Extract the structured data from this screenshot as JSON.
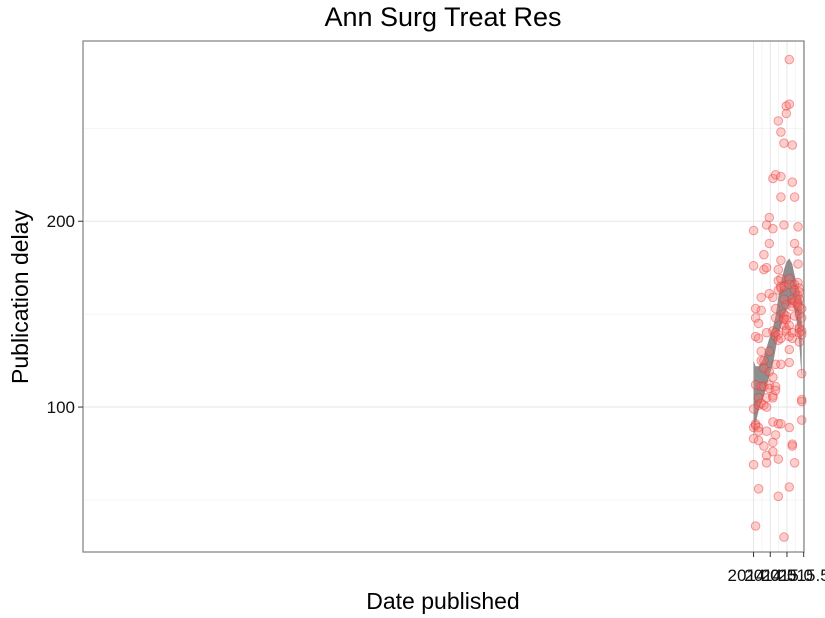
{
  "chart_data": {
    "type": "scatter",
    "title": "Ann Surg Treat Res",
    "xlabel": "Date published",
    "ylabel": "Publication delay",
    "xlim": [
      1993.93,
      2015.51
    ],
    "ylim": [
      22,
      297
    ],
    "x_ticks": [
      2014.0,
      2014.5,
      2015.0,
      2015.5
    ],
    "x_tick_labels": [
      "2014.0",
      "2014.5",
      "2015.0",
      "2015.5"
    ],
    "y_ticks": [
      100,
      200
    ],
    "y_tick_labels": [
      "100",
      "200"
    ],
    "grid": true,
    "point_color": "#f8766d",
    "point_edge_color": "#e8333a",
    "band_color": "#888888",
    "points": [
      [
        2014.0,
        195
      ],
      [
        2014.0,
        176
      ],
      [
        2014.0,
        99
      ],
      [
        2014.0,
        89
      ],
      [
        2014.0,
        83
      ],
      [
        2014.0,
        69
      ],
      [
        2014.06,
        153
      ],
      [
        2014.06,
        148
      ],
      [
        2014.06,
        138
      ],
      [
        2014.06,
        112
      ],
      [
        2014.06,
        91
      ],
      [
        2014.06,
        90
      ],
      [
        2014.06,
        36
      ],
      [
        2014.15,
        145
      ],
      [
        2014.15,
        137
      ],
      [
        2014.15,
        105
      ],
      [
        2014.15,
        101
      ],
      [
        2014.15,
        89
      ],
      [
        2014.15,
        87
      ],
      [
        2014.15,
        82
      ],
      [
        2014.15,
        56
      ],
      [
        2014.23,
        159
      ],
      [
        2014.23,
        152
      ],
      [
        2014.23,
        130
      ],
      [
        2014.23,
        125
      ],
      [
        2014.23,
        111
      ],
      [
        2014.23,
        102
      ],
      [
        2014.31,
        182
      ],
      [
        2014.31,
        174
      ],
      [
        2014.31,
        125
      ],
      [
        2014.31,
        121
      ],
      [
        2014.31,
        111
      ],
      [
        2014.31,
        101
      ],
      [
        2014.31,
        79
      ],
      [
        2014.39,
        198
      ],
      [
        2014.39,
        175
      ],
      [
        2014.39,
        140
      ],
      [
        2014.39,
        105
      ],
      [
        2014.39,
        100
      ],
      [
        2014.39,
        87
      ],
      [
        2014.39,
        74
      ],
      [
        2014.39,
        70
      ],
      [
        2014.47,
        202
      ],
      [
        2014.47,
        188
      ],
      [
        2014.47,
        161
      ],
      [
        2014.47,
        130
      ],
      [
        2014.47,
        119
      ],
      [
        2014.47,
        112
      ],
      [
        2014.47,
        110
      ],
      [
        2014.58,
        223
      ],
      [
        2014.58,
        196
      ],
      [
        2014.58,
        159
      ],
      [
        2014.58,
        141
      ],
      [
        2014.58,
        116
      ],
      [
        2014.58,
        106
      ],
      [
        2014.58,
        105
      ],
      [
        2014.58,
        92
      ],
      [
        2014.58,
        81
      ],
      [
        2014.58,
        76
      ],
      [
        2014.66,
        225
      ],
      [
        2014.66,
        153
      ],
      [
        2014.66,
        148
      ],
      [
        2014.66,
        140
      ],
      [
        2014.66,
        138
      ],
      [
        2014.66,
        123
      ],
      [
        2014.66,
        111
      ],
      [
        2014.66,
        109
      ],
      [
        2014.66,
        85
      ],
      [
        2014.74,
        254
      ],
      [
        2014.74,
        174
      ],
      [
        2014.74,
        168
      ],
      [
        2014.74,
        163
      ],
      [
        2014.74,
        139
      ],
      [
        2014.74,
        136
      ],
      [
        2014.74,
        91
      ],
      [
        2014.74,
        72
      ],
      [
        2014.74,
        52
      ],
      [
        2014.82,
        248
      ],
      [
        2014.82,
        224
      ],
      [
        2014.82,
        213
      ],
      [
        2014.82,
        179
      ],
      [
        2014.82,
        169
      ],
      [
        2014.82,
        165
      ],
      [
        2014.82,
        164
      ],
      [
        2014.82,
        137
      ],
      [
        2014.82,
        123
      ],
      [
        2014.82,
        91
      ],
      [
        2014.91,
        242
      ],
      [
        2014.91,
        198
      ],
      [
        2014.91,
        165
      ],
      [
        2014.91,
        158
      ],
      [
        2014.91,
        150
      ],
      [
        2014.91,
        148
      ],
      [
        2014.91,
        147
      ],
      [
        2014.91,
        144
      ],
      [
        2014.91,
        30
      ],
      [
        2014.98,
        262
      ],
      [
        2014.98,
        258
      ],
      [
        2014.98,
        155
      ],
      [
        2014.98,
        149
      ],
      [
        2014.98,
        147
      ],
      [
        2014.98,
        142
      ],
      [
        2014.98,
        141
      ],
      [
        2015.07,
        287
      ],
      [
        2015.07,
        263
      ],
      [
        2015.07,
        169
      ],
      [
        2015.07,
        166
      ],
      [
        2015.07,
        144
      ],
      [
        2015.07,
        138
      ],
      [
        2015.07,
        131
      ],
      [
        2015.07,
        124
      ],
      [
        2015.07,
        89
      ],
      [
        2015.07,
        57
      ],
      [
        2015.16,
        241
      ],
      [
        2015.16,
        221
      ],
      [
        2015.16,
        158
      ],
      [
        2015.16,
        156
      ],
      [
        2015.16,
        154
      ],
      [
        2015.16,
        140
      ],
      [
        2015.16,
        137
      ],
      [
        2015.16,
        80
      ],
      [
        2015.16,
        79
      ],
      [
        2015.23,
        213
      ],
      [
        2015.23,
        188
      ],
      [
        2015.23,
        166
      ],
      [
        2015.23,
        163
      ],
      [
        2015.23,
        157
      ],
      [
        2015.23,
        149
      ],
      [
        2015.23,
        70
      ],
      [
        2015.33,
        197
      ],
      [
        2015.33,
        184
      ],
      [
        2015.33,
        177
      ],
      [
        2015.33,
        167
      ],
      [
        2015.33,
        160
      ],
      [
        2015.33,
        156
      ],
      [
        2015.33,
        155
      ],
      [
        2015.37,
        164
      ],
      [
        2015.37,
        162
      ],
      [
        2015.37,
        158
      ],
      [
        2015.37,
        154
      ],
      [
        2015.37,
        150
      ],
      [
        2015.37,
        143
      ],
      [
        2015.37,
        142
      ],
      [
        2015.37,
        140
      ],
      [
        2015.37,
        135
      ],
      [
        2015.44,
        153
      ],
      [
        2015.44,
        148
      ],
      [
        2015.44,
        141
      ],
      [
        2015.44,
        139
      ],
      [
        2015.44,
        118
      ],
      [
        2015.44,
        104
      ],
      [
        2015.44,
        103
      ],
      [
        2015.44,
        93
      ]
    ],
    "smooth_band": {
      "x": [
        2014.0,
        2014.06,
        2014.15,
        2014.23,
        2014.31,
        2014.39,
        2014.47,
        2014.58,
        2014.66,
        2014.74,
        2014.82,
        2014.91,
        2014.98,
        2015.07,
        2015.16,
        2015.23,
        2015.3,
        2015.37,
        2015.44
      ],
      "upper": [
        125,
        122,
        122,
        124,
        127,
        132,
        137,
        143,
        149,
        159,
        167,
        174,
        178,
        180,
        177,
        171,
        166,
        163,
        158
      ],
      "lower": [
        84,
        91,
        98,
        102,
        106,
        111,
        117,
        123,
        131,
        139,
        143,
        148,
        152,
        155,
        155,
        152,
        145,
        134,
        115
      ]
    }
  }
}
